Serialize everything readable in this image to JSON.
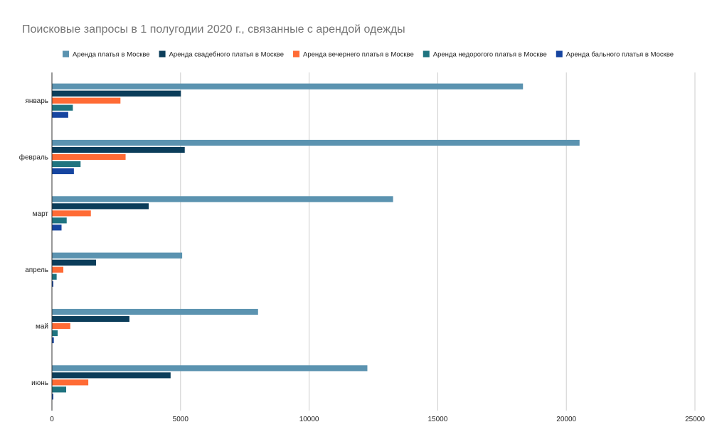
{
  "chart_data": {
    "type": "bar",
    "orientation": "horizontal",
    "title": "Поисковые запросы в 1 полугодии 2020 г., связанные с арендой одежды",
    "categories": [
      "январь",
      "февраль",
      "март",
      "апрель",
      "май",
      "июнь"
    ],
    "series": [
      {
        "name": "Аренда платья в Москве",
        "color": "#5b93b0",
        "values": [
          18300,
          20500,
          13250,
          5050,
          8000,
          12250
        ]
      },
      {
        "name": "Аренда свадебного платья в Москве",
        "color": "#0b3d5a",
        "values": [
          5000,
          5150,
          3750,
          1700,
          3000,
          4600
        ]
      },
      {
        "name": "Аренда вечернего платья в Москве",
        "color": "#ff6b35",
        "values": [
          2650,
          2850,
          1500,
          430,
          700,
          1400
        ]
      },
      {
        "name": "Аренда недорогого платья в Москве",
        "color": "#1f7480",
        "values": [
          800,
          1100,
          560,
          170,
          210,
          540
        ]
      },
      {
        "name": "Аренда бального платья в Москве",
        "color": "#1645a0",
        "values": [
          620,
          840,
          360,
          40,
          60,
          40
        ]
      }
    ],
    "xlim": [
      0,
      25000
    ],
    "xticks": [
      "0",
      "5000",
      "10000",
      "15000",
      "20000",
      "25000"
    ],
    "xlabel": "",
    "ylabel": "",
    "grid": "vertical",
    "legend_position": "top"
  }
}
